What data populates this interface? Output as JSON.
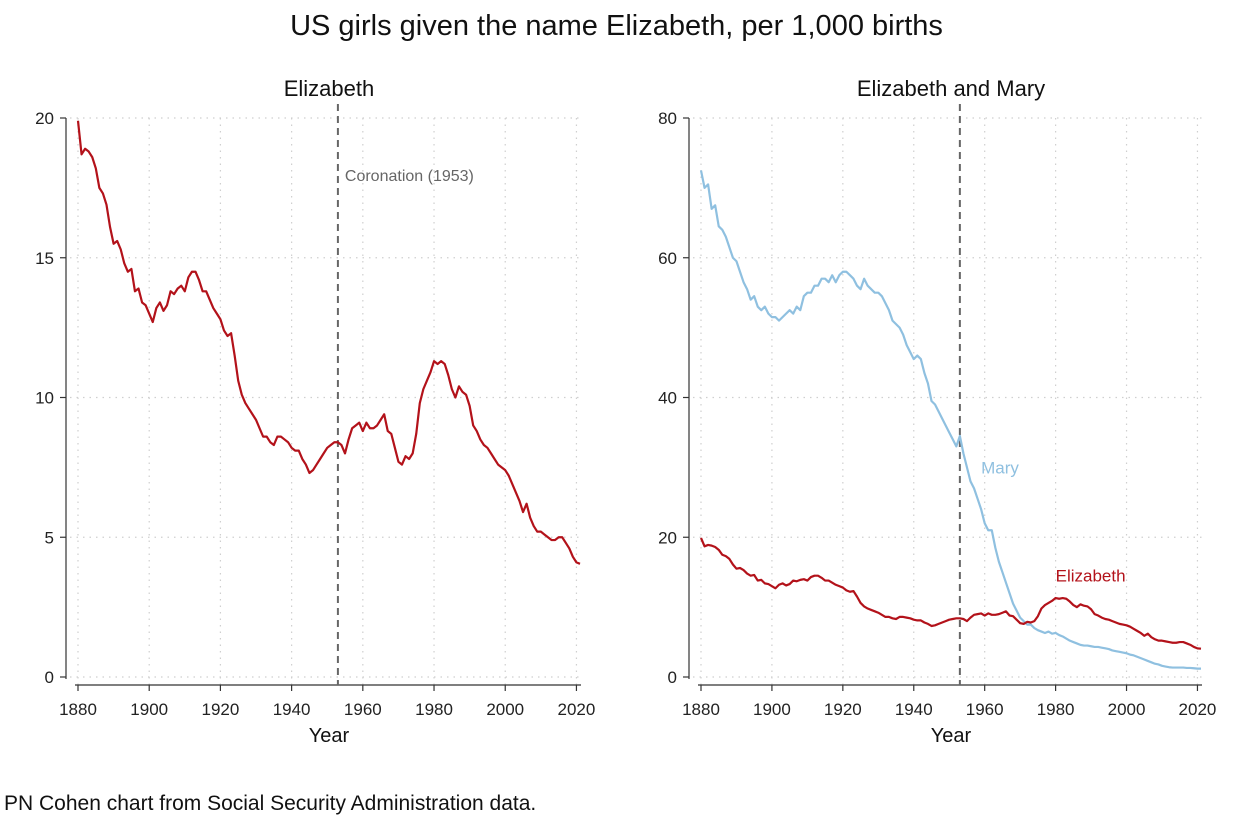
{
  "title": "US girls given the name Elizabeth, per 1,000 births",
  "source_note": "PN Cohen chart from Social Security Administration data.",
  "colors": {
    "elizabeth": "#b3121a",
    "mary": "#8fc0e0",
    "vline": "#666666",
    "grid": "#cfcfcf",
    "axis": "#333333"
  },
  "chart_data": [
    {
      "type": "line",
      "title": "Elizabeth",
      "xlabel": "Year",
      "ylabel": "",
      "xlim": [
        1880,
        2021
      ],
      "ylim": [
        0,
        20
      ],
      "xticks": [
        1880,
        1900,
        1920,
        1940,
        1960,
        1980,
        2000,
        2020
      ],
      "yticks": [
        0,
        5,
        10,
        15,
        20
      ],
      "grid": true,
      "legend": "none",
      "vline": {
        "x": 1953,
        "label": "Coronation (1953)"
      },
      "series": [
        {
          "name": "",
          "color_key": "elizabeth",
          "x": [
            1880,
            1881,
            1882,
            1883,
            1884,
            1885,
            1886,
            1887,
            1888,
            1889,
            1890,
            1891,
            1892,
            1893,
            1894,
            1895,
            1896,
            1897,
            1898,
            1899,
            1900,
            1901,
            1902,
            1903,
            1904,
            1905,
            1906,
            1907,
            1908,
            1909,
            1910,
            1911,
            1912,
            1913,
            1914,
            1915,
            1916,
            1917,
            1918,
            1919,
            1920,
            1921,
            1922,
            1923,
            1924,
            1925,
            1926,
            1927,
            1928,
            1929,
            1930,
            1931,
            1932,
            1933,
            1934,
            1935,
            1936,
            1937,
            1938,
            1939,
            1940,
            1941,
            1942,
            1943,
            1944,
            1945,
            1946,
            1947,
            1948,
            1949,
            1950,
            1951,
            1952,
            1953,
            1954,
            1955,
            1956,
            1957,
            1958,
            1959,
            1960,
            1961,
            1962,
            1963,
            1964,
            1965,
            1966,
            1967,
            1968,
            1969,
            1970,
            1971,
            1972,
            1973,
            1974,
            1975,
            1976,
            1977,
            1978,
            1979,
            1980,
            1981,
            1982,
            1983,
            1984,
            1985,
            1986,
            1987,
            1988,
            1989,
            1990,
            1991,
            1992,
            1993,
            1994,
            1995,
            1996,
            1997,
            1998,
            1999,
            2000,
            2001,
            2002,
            2003,
            2004,
            2005,
            2006,
            2007,
            2008,
            2009,
            2010,
            2011,
            2012,
            2013,
            2014,
            2015,
            2016,
            2017,
            2018,
            2019,
            2020,
            2021
          ],
          "y": [
            19.9,
            18.7,
            18.9,
            18.8,
            18.6,
            18.2,
            17.5,
            17.3,
            16.9,
            16.1,
            15.5,
            15.6,
            15.3,
            14.8,
            14.5,
            14.6,
            13.8,
            13.9,
            13.4,
            13.3,
            13.0,
            12.7,
            13.2,
            13.4,
            13.1,
            13.3,
            13.8,
            13.7,
            13.9,
            14.0,
            13.8,
            14.3,
            14.5,
            14.5,
            14.2,
            13.8,
            13.8,
            13.5,
            13.2,
            13.0,
            12.8,
            12.4,
            12.2,
            12.3,
            11.5,
            10.6,
            10.1,
            9.8,
            9.6,
            9.4,
            9.2,
            8.9,
            8.6,
            8.6,
            8.4,
            8.3,
            8.6,
            8.6,
            8.5,
            8.4,
            8.2,
            8.1,
            8.1,
            7.8,
            7.6,
            7.3,
            7.4,
            7.6,
            7.8,
            8.0,
            8.2,
            8.3,
            8.4,
            8.4,
            8.3,
            8.0,
            8.5,
            8.9,
            9.0,
            9.1,
            8.8,
            9.1,
            8.9,
            8.9,
            9.0,
            9.2,
            9.4,
            8.8,
            8.7,
            8.2,
            7.7,
            7.6,
            7.9,
            7.8,
            8.0,
            8.7,
            9.8,
            10.3,
            10.6,
            10.9,
            11.3,
            11.2,
            11.3,
            11.2,
            10.8,
            10.3,
            10.0,
            10.4,
            10.2,
            10.1,
            9.7,
            9.0,
            8.8,
            8.5,
            8.3,
            8.2,
            8.0,
            7.8,
            7.6,
            7.5,
            7.4,
            7.2,
            6.9,
            6.6,
            6.3,
            5.9,
            6.2,
            5.7,
            5.4,
            5.2,
            5.2,
            5.1,
            5.0,
            4.9,
            4.9,
            5.0,
            5.0,
            4.8,
            4.6,
            4.3,
            4.1,
            4.05
          ]
        }
      ]
    },
    {
      "type": "line",
      "title": "Elizabeth and Mary",
      "xlabel": "Year",
      "ylabel": "",
      "xlim": [
        1880,
        2021
      ],
      "ylim": [
        0,
        80
      ],
      "xticks": [
        1880,
        1900,
        1920,
        1940,
        1960,
        1980,
        2000,
        2020
      ],
      "yticks": [
        0,
        20,
        40,
        60,
        80
      ],
      "grid": true,
      "legend": "none",
      "vline": {
        "x": 1953,
        "label": ""
      },
      "series": [
        {
          "name": "Mary",
          "color_key": "mary",
          "label_at": [
            1959,
            30
          ],
          "x": [
            1880,
            1881,
            1882,
            1883,
            1884,
            1885,
            1886,
            1887,
            1888,
            1889,
            1890,
            1891,
            1892,
            1893,
            1894,
            1895,
            1896,
            1897,
            1898,
            1899,
            1900,
            1901,
            1902,
            1903,
            1904,
            1905,
            1906,
            1907,
            1908,
            1909,
            1910,
            1911,
            1912,
            1913,
            1914,
            1915,
            1916,
            1917,
            1918,
            1919,
            1920,
            1921,
            1922,
            1923,
            1924,
            1925,
            1926,
            1927,
            1928,
            1929,
            1930,
            1931,
            1932,
            1933,
            1934,
            1935,
            1936,
            1937,
            1938,
            1939,
            1940,
            1941,
            1942,
            1943,
            1944,
            1945,
            1946,
            1947,
            1948,
            1949,
            1950,
            1951,
            1952,
            1953,
            1954,
            1955,
            1956,
            1957,
            1958,
            1959,
            1960,
            1961,
            1962,
            1963,
            1964,
            1965,
            1966,
            1967,
            1968,
            1969,
            1970,
            1971,
            1972,
            1973,
            1974,
            1975,
            1976,
            1977,
            1978,
            1979,
            1980,
            1981,
            1982,
            1983,
            1984,
            1985,
            1986,
            1987,
            1988,
            1989,
            1990,
            1991,
            1992,
            1993,
            1994,
            1995,
            1996,
            1997,
            1998,
            1999,
            2000,
            2001,
            2002,
            2003,
            2004,
            2005,
            2006,
            2007,
            2008,
            2009,
            2010,
            2011,
            2012,
            2013,
            2014,
            2015,
            2016,
            2017,
            2018,
            2019,
            2020,
            2021
          ],
          "y": [
            72.5,
            70,
            70.5,
            67,
            67.5,
            64.5,
            64,
            63,
            61.5,
            60,
            59.5,
            58,
            56.5,
            55.5,
            54,
            54.5,
            53,
            52.5,
            53,
            52,
            51.5,
            51.5,
            51,
            51.5,
            52,
            52.5,
            52,
            53,
            52.5,
            54.5,
            55,
            55,
            56,
            56,
            57,
            57,
            56.5,
            57.5,
            56.5,
            57.5,
            58,
            58,
            57.5,
            57,
            56,
            55.5,
            57,
            56,
            55.5,
            55,
            55,
            54.5,
            53.5,
            52.5,
            51,
            50.5,
            50,
            49,
            47.5,
            46.5,
            45.5,
            46,
            45.5,
            43.5,
            42,
            39.5,
            39,
            38,
            37,
            36,
            35,
            34,
            33,
            34.5,
            32,
            30,
            28,
            27,
            25.5,
            24,
            22,
            21,
            21,
            18.5,
            16.5,
            15,
            13.5,
            12,
            10.5,
            9.5,
            8.5,
            8,
            7.5,
            7.5,
            7,
            6.7,
            6.5,
            6.3,
            6.5,
            6.2,
            6.3,
            6,
            5.8,
            5.5,
            5.2,
            5,
            4.8,
            4.6,
            4.5,
            4.5,
            4.4,
            4.3,
            4.3,
            4.2,
            4.1,
            4,
            3.8,
            3.7,
            3.6,
            3.5,
            3.4,
            3.2,
            3.1,
            2.9,
            2.7,
            2.5,
            2.3,
            2.1,
            1.9,
            1.8,
            1.6,
            1.5,
            1.4,
            1.35,
            1.35,
            1.35,
            1.35,
            1.3,
            1.3,
            1.25,
            1.2,
            1.2
          ]
        },
        {
          "name": "Elizabeth",
          "color_key": "elizabeth",
          "label_at": [
            1980,
            14.5
          ],
          "x": [
            1880,
            1881,
            1882,
            1883,
            1884,
            1885,
            1886,
            1887,
            1888,
            1889,
            1890,
            1891,
            1892,
            1893,
            1894,
            1895,
            1896,
            1897,
            1898,
            1899,
            1900,
            1901,
            1902,
            1903,
            1904,
            1905,
            1906,
            1907,
            1908,
            1909,
            1910,
            1911,
            1912,
            1913,
            1914,
            1915,
            1916,
            1917,
            1918,
            1919,
            1920,
            1921,
            1922,
            1923,
            1924,
            1925,
            1926,
            1927,
            1928,
            1929,
            1930,
            1931,
            1932,
            1933,
            1934,
            1935,
            1936,
            1937,
            1938,
            1939,
            1940,
            1941,
            1942,
            1943,
            1944,
            1945,
            1946,
            1947,
            1948,
            1949,
            1950,
            1951,
            1952,
            1953,
            1954,
            1955,
            1956,
            1957,
            1958,
            1959,
            1960,
            1961,
            1962,
            1963,
            1964,
            1965,
            1966,
            1967,
            1968,
            1969,
            1970,
            1971,
            1972,
            1973,
            1974,
            1975,
            1976,
            1977,
            1978,
            1979,
            1980,
            1981,
            1982,
            1983,
            1984,
            1985,
            1986,
            1987,
            1988,
            1989,
            1990,
            1991,
            1992,
            1993,
            1994,
            1995,
            1996,
            1997,
            1998,
            1999,
            2000,
            2001,
            2002,
            2003,
            2004,
            2005,
            2006,
            2007,
            2008,
            2009,
            2010,
            2011,
            2012,
            2013,
            2014,
            2015,
            2016,
            2017,
            2018,
            2019,
            2020,
            2021
          ],
          "y": [
            19.9,
            18.7,
            18.9,
            18.8,
            18.6,
            18.2,
            17.5,
            17.3,
            16.9,
            16.1,
            15.5,
            15.6,
            15.3,
            14.8,
            14.5,
            14.6,
            13.8,
            13.9,
            13.4,
            13.3,
            13.0,
            12.7,
            13.2,
            13.4,
            13.1,
            13.3,
            13.8,
            13.7,
            13.9,
            14.0,
            13.8,
            14.3,
            14.5,
            14.5,
            14.2,
            13.8,
            13.8,
            13.5,
            13.2,
            13.0,
            12.8,
            12.4,
            12.2,
            12.3,
            11.5,
            10.6,
            10.1,
            9.8,
            9.6,
            9.4,
            9.2,
            8.9,
            8.6,
            8.6,
            8.4,
            8.3,
            8.6,
            8.6,
            8.5,
            8.4,
            8.2,
            8.1,
            8.1,
            7.8,
            7.6,
            7.3,
            7.4,
            7.6,
            7.8,
            8.0,
            8.2,
            8.3,
            8.4,
            8.4,
            8.3,
            8.0,
            8.5,
            8.9,
            9.0,
            9.1,
            8.8,
            9.1,
            8.9,
            8.9,
            9.0,
            9.2,
            9.4,
            8.8,
            8.7,
            8.2,
            7.7,
            7.6,
            7.9,
            7.8,
            8.0,
            8.7,
            9.8,
            10.3,
            10.6,
            10.9,
            11.3,
            11.2,
            11.3,
            11.2,
            10.8,
            10.3,
            10.0,
            10.4,
            10.2,
            10.1,
            9.7,
            9.0,
            8.8,
            8.5,
            8.3,
            8.2,
            8.0,
            7.8,
            7.6,
            7.5,
            7.4,
            7.2,
            6.9,
            6.6,
            6.3,
            5.9,
            6.2,
            5.7,
            5.4,
            5.2,
            5.2,
            5.1,
            5.0,
            4.9,
            4.9,
            5.0,
            5.0,
            4.8,
            4.6,
            4.3,
            4.1,
            4.05
          ]
        }
      ]
    }
  ]
}
